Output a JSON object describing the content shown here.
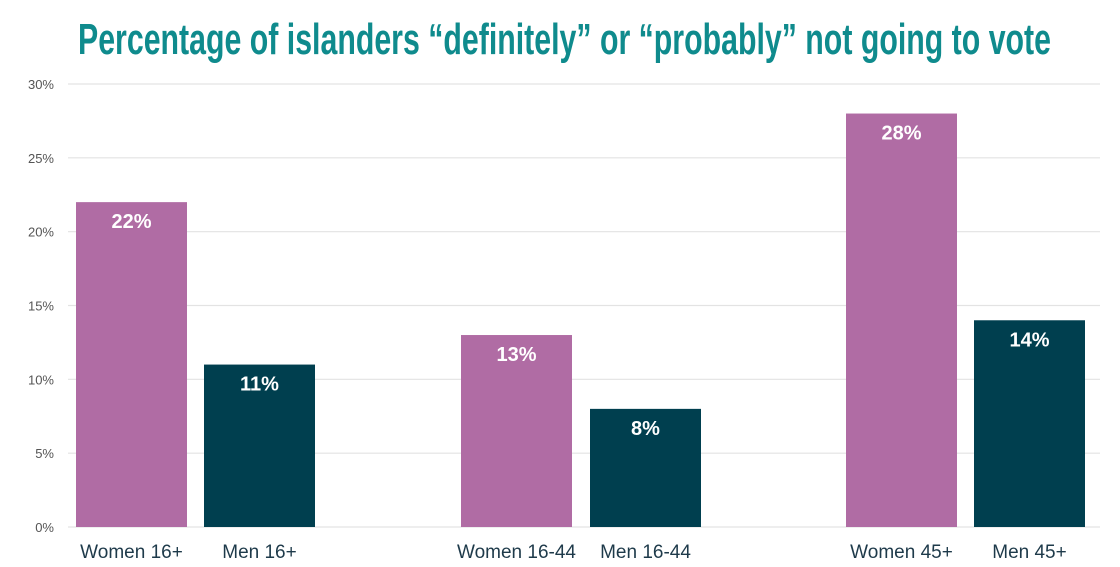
{
  "chart_data": {
    "type": "bar",
    "title": "Percentage of islanders “definitely” or “probably” not going to vote",
    "xlabel": "",
    "ylabel": "",
    "ylim": [
      0,
      30
    ],
    "yticks": [
      0,
      5,
      10,
      15,
      20,
      25,
      30
    ],
    "ytick_labels": [
      "0%",
      "5%",
      "10%",
      "15%",
      "20%",
      "25%",
      "30%"
    ],
    "grid": true,
    "categories": [
      "Women 16+",
      "Men 16+",
      "Women 16-44",
      "Men 16-44",
      "Women 45+",
      "Men 45+"
    ],
    "values": [
      22,
      11,
      13,
      8,
      28,
      14
    ],
    "data_labels": [
      "22%",
      "11%",
      "13%",
      "8%",
      "28%",
      "14%"
    ],
    "bar_colors": [
      "#b06ca4",
      "#003f4f",
      "#b06ca4",
      "#003f4f",
      "#b06ca4",
      "#003f4f"
    ]
  }
}
